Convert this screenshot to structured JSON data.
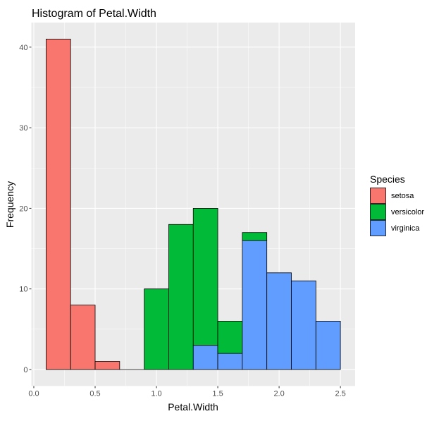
{
  "chart_data": {
    "type": "bar",
    "stacked": true,
    "title": "Histogram of Petal.Width",
    "xlabel": "Petal.Width",
    "ylabel": "Frequency",
    "bin_edges": [
      0.1,
      0.3,
      0.5,
      0.7,
      0.9,
      1.1,
      1.3,
      1.5,
      1.7,
      1.9,
      2.1,
      2.3,
      2.5
    ],
    "series": [
      {
        "name": "setosa",
        "color": "#F8766D",
        "values": [
          41,
          8,
          1,
          0,
          0,
          0,
          0,
          0,
          0,
          0,
          0,
          0
        ]
      },
      {
        "name": "versicolor",
        "color": "#00BA38",
        "values": [
          0,
          0,
          0,
          0,
          10,
          18,
          17,
          4,
          1,
          0,
          0,
          0
        ]
      },
      {
        "name": "virginica",
        "color": "#619CFF",
        "values": [
          0,
          0,
          0,
          0,
          0,
          0,
          3,
          2,
          16,
          12,
          11,
          6
        ]
      }
    ],
    "stack_order_bottom_to_top": [
      "virginica",
      "versicolor",
      "setosa"
    ],
    "xlim": [
      -0.02,
      2.62
    ],
    "ylim": [
      -2.05,
      43.05
    ],
    "x_ticks": [
      0.0,
      0.5,
      1.0,
      1.5,
      2.0,
      2.5
    ],
    "x_tick_labels": [
      "0.0",
      "0.5",
      "1.0",
      "1.5",
      "2.0",
      "2.5"
    ],
    "y_ticks": [
      0,
      10,
      20,
      30,
      40
    ],
    "y_tick_labels": [
      "0",
      "10",
      "20",
      "30",
      "40"
    ],
    "grid": true,
    "legend": {
      "title": "Species",
      "position": "right"
    },
    "panel_background": "#EBEBEB"
  }
}
